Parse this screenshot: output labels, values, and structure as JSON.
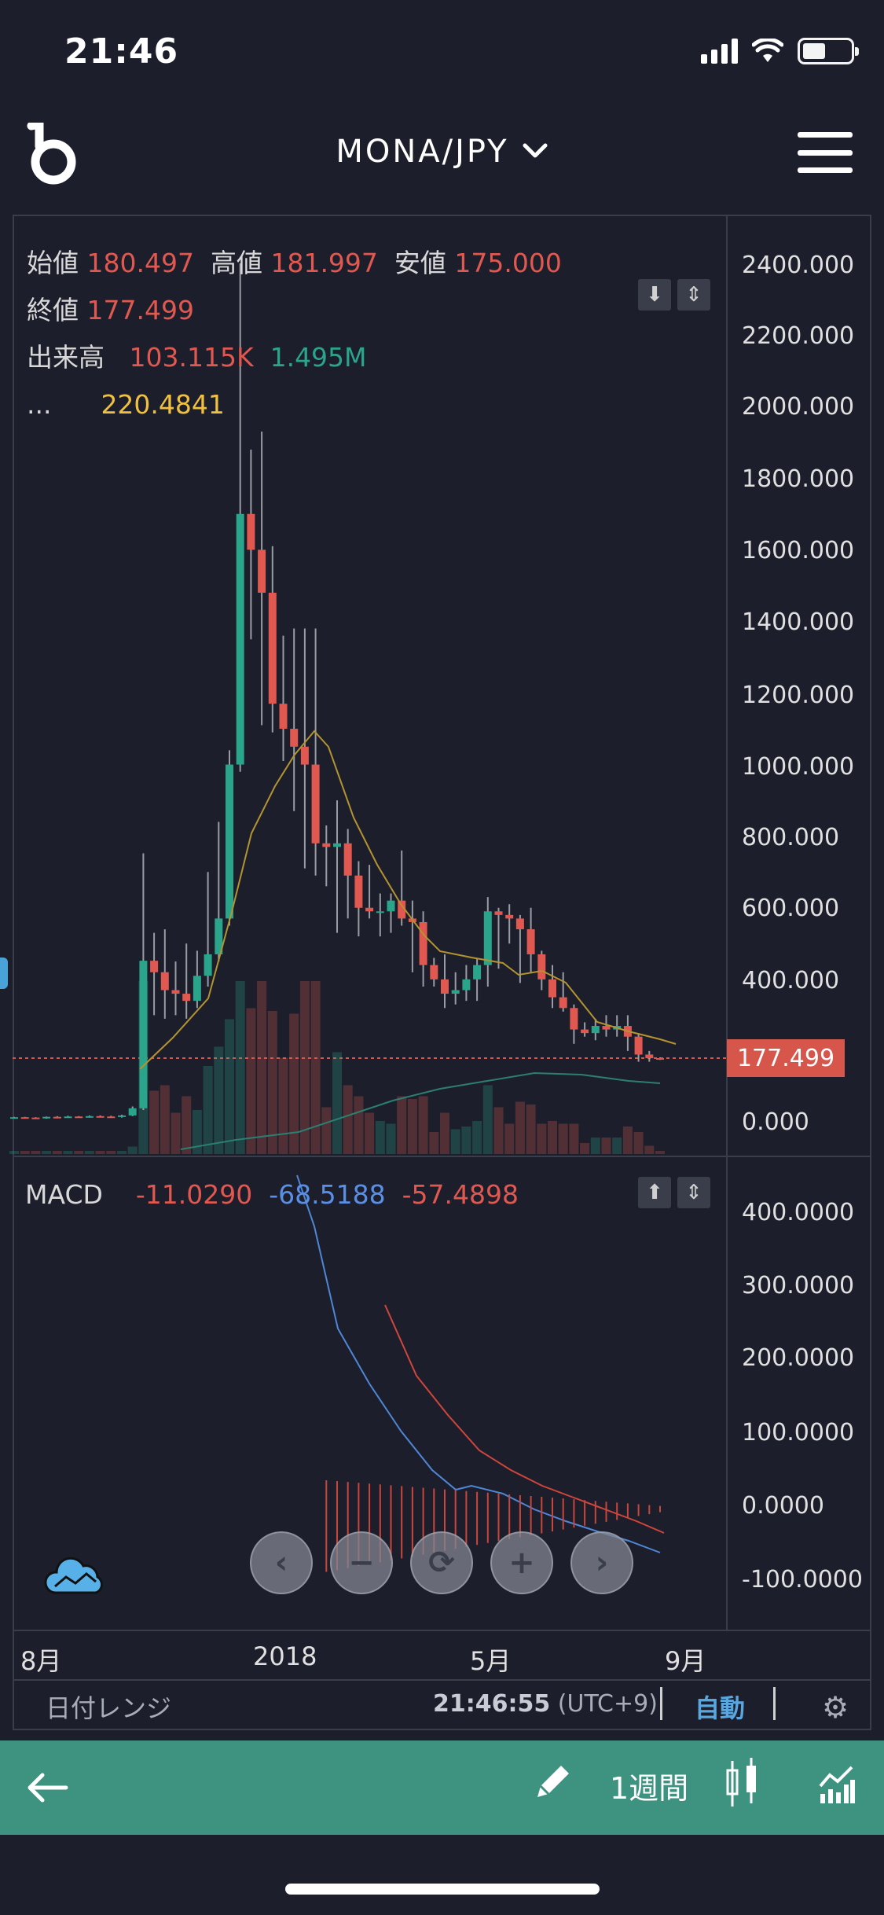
{
  "status": {
    "time": "21:46"
  },
  "header": {
    "pair": "MONA/JPY",
    "chevron": "⌄"
  },
  "ohlc": {
    "open_label": "始値",
    "open": "180.497",
    "high_label": "高値",
    "high": "181.997",
    "low_label": "安値",
    "low": "175.000",
    "close_label": "終値",
    "close": "177.499",
    "volume_label": "出来高",
    "volume_a": "103.115K",
    "volume_b": "1.495M",
    "ma_label": "...",
    "ma": "220.4841"
  },
  "macd": {
    "label": "MACD",
    "v1": "-11.0290",
    "v2": "-68.5188",
    "v3": "-57.4898"
  },
  "price_axis": [
    "2400.000",
    "2200.000",
    "2000.000",
    "1800.000",
    "1600.000",
    "1400.000",
    "1200.000",
    "1000.000",
    "800.000",
    "600.000",
    "400.000",
    "177.499",
    "0.000"
  ],
  "macd_axis": [
    "400.0000",
    "300.0000",
    "200.0000",
    "100.0000",
    "0.0000",
    "-100.0000"
  ],
  "x_axis": [
    "8月",
    "2018",
    "5月",
    "9月"
  ],
  "current_price": "177.499",
  "footer": {
    "range_label": "日付レンジ",
    "clock": "21:46:55",
    "tz": "(UTC+9)",
    "auto": "自動",
    "period": "1週間"
  },
  "icons": [
    "signal-icon",
    "wifi-icon",
    "battery-icon",
    "logo-icon",
    "menu-icon",
    "cloud-icon",
    "back-arrow-icon",
    "pencil-icon",
    "candlestick-icon",
    "indicator-icon",
    "gear-icon"
  ],
  "colors": {
    "up": "#2aa58b",
    "down": "#e0584f",
    "ma": "#c8a834",
    "macd": "#4f86d6",
    "signal": "#d0453c",
    "accent": "#3e9280"
  },
  "chart_data": {
    "type": "candlestick",
    "ylim": [
      0,
      2500
    ],
    "x_ticks": [
      "8月",
      "2018",
      "5月",
      "9月"
    ],
    "candles": [
      [
        15,
        15,
        12,
        16
      ],
      [
        15,
        14,
        12,
        16
      ],
      [
        14,
        13,
        10,
        15
      ],
      [
        13,
        16,
        11,
        17
      ],
      [
        16,
        15,
        12,
        18
      ],
      [
        15,
        17,
        13,
        19
      ],
      [
        17,
        16,
        14,
        18
      ],
      [
        16,
        18,
        14,
        20
      ],
      [
        18,
        17,
        15,
        20
      ],
      [
        17,
        16,
        14,
        19
      ],
      [
        16,
        20,
        14,
        22
      ],
      [
        20,
        40,
        18,
        45
      ],
      [
        40,
        452,
        35,
        752
      ],
      [
        452,
        420,
        300,
        530
      ],
      [
        420,
        370,
        290,
        540
      ],
      [
        370,
        360,
        300,
        450
      ],
      [
        360,
        340,
        290,
        500
      ],
      [
        340,
        410,
        320,
        480
      ],
      [
        410,
        470,
        380,
        700
      ],
      [
        470,
        570,
        450,
        840
      ],
      [
        570,
        1000,
        550,
        1040
      ],
      [
        1000,
        1700,
        980,
        2400
      ],
      [
        1700,
        1600,
        1350,
        1880
      ],
      [
        1600,
        1480,
        1110,
        1930
      ],
      [
        1480,
        1170,
        1090,
        1610
      ],
      [
        1170,
        1100,
        1010,
        1360
      ],
      [
        1100,
        1050,
        870,
        1380
      ],
      [
        1050,
        1000,
        710,
        1380
      ],
      [
        1000,
        780,
        690,
        1380
      ],
      [
        780,
        770,
        660,
        830
      ],
      [
        770,
        780,
        530,
        900
      ],
      [
        780,
        690,
        570,
        820
      ],
      [
        690,
        600,
        520,
        730
      ],
      [
        600,
        590,
        570,
        720
      ],
      [
        590,
        590,
        520,
        640
      ],
      [
        590,
        620,
        530,
        640
      ],
      [
        620,
        570,
        550,
        760
      ],
      [
        570,
        560,
        420,
        620
      ],
      [
        560,
        440,
        380,
        590
      ],
      [
        440,
        400,
        380,
        460
      ],
      [
        400,
        360,
        320,
        470
      ],
      [
        360,
        370,
        330,
        420
      ],
      [
        370,
        400,
        340,
        440
      ],
      [
        400,
        440,
        340,
        460
      ],
      [
        440,
        590,
        380,
        630
      ],
      [
        590,
        580,
        430,
        600
      ],
      [
        580,
        570,
        500,
        610
      ],
      [
        570,
        540,
        390,
        580
      ],
      [
        540,
        470,
        420,
        600
      ],
      [
        470,
        400,
        370,
        480
      ],
      [
        400,
        350,
        320,
        440
      ],
      [
        350,
        320,
        310,
        420
      ],
      [
        320,
        260,
        220,
        330
      ],
      [
        260,
        250,
        240,
        280
      ],
      [
        250,
        270,
        230,
        290
      ],
      [
        270,
        260,
        240,
        300
      ],
      [
        260,
        270,
        240,
        300
      ],
      [
        270,
        240,
        200,
        300
      ],
      [
        240,
        190,
        170,
        250
      ],
      [
        190,
        180,
        170,
        200
      ],
      [
        180,
        177,
        175,
        182
      ]
    ]
  }
}
